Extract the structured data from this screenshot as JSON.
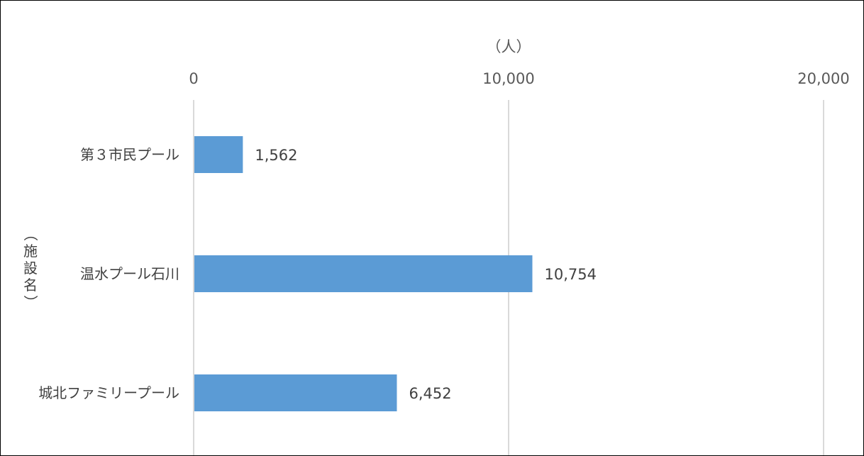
{
  "chart_data": {
    "type": "bar",
    "orientation": "horizontal",
    "axis_position": "top",
    "unit_label": "（人）",
    "ylabel": "（施設名）",
    "xlim": [
      0,
      20000
    ],
    "ticks": [
      0,
      10000,
      20000
    ],
    "tick_labels": [
      "0",
      "10,000",
      "20,000"
    ],
    "categories": [
      "第３市民プール",
      "温水プール石川",
      "城北ファミリープール"
    ],
    "values": [
      1562,
      10754,
      6452
    ],
    "value_labels": [
      "1,562",
      "10,754",
      "6,452"
    ],
    "grid": true,
    "bar_color": "#5b9bd5",
    "grid_color": "#d9d9d9"
  }
}
